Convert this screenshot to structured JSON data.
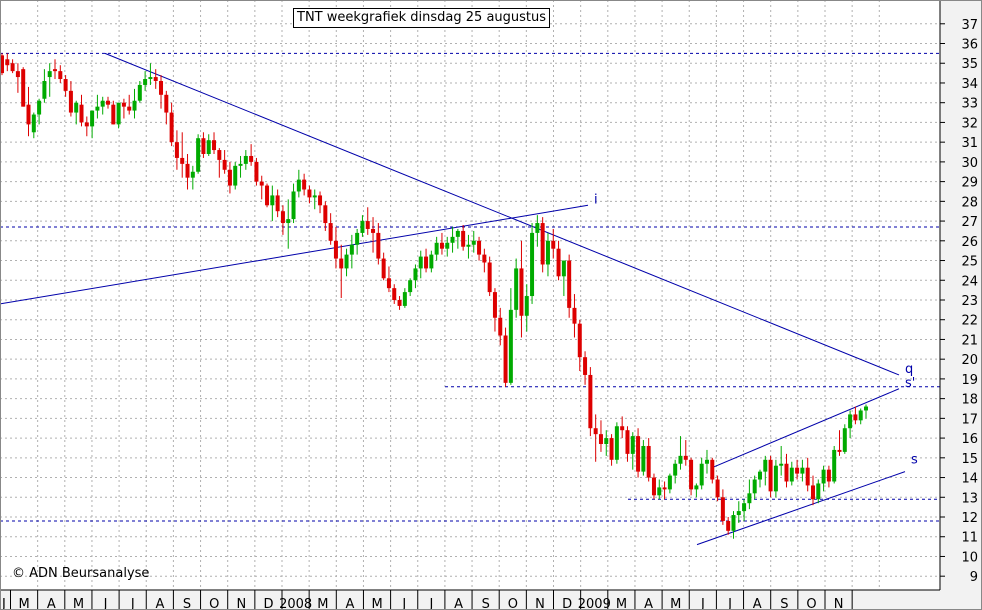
{
  "chart_data": {
    "type": "candlestick",
    "title": "TNT weekgrafiek dinsdag 25 augustus",
    "copyright": "© ADN Beursanalyse",
    "y_axis": {
      "position": "right",
      "ylim": [
        8.3,
        37.8
      ],
      "ticks": [
        9,
        10,
        11,
        12,
        13,
        14,
        15,
        16,
        17,
        18,
        19,
        20,
        21,
        22,
        23,
        24,
        25,
        26,
        27,
        28,
        29,
        30,
        31,
        32,
        33,
        34,
        35,
        36,
        37
      ]
    },
    "x_axis": {
      "tick_labels": [
        "J",
        "M",
        "A",
        "M",
        "J",
        "J",
        "A",
        "S",
        "O",
        "N",
        "D",
        "2008",
        "M",
        "A",
        "M",
        "J",
        "J",
        "A",
        "S",
        "O",
        "N",
        "D",
        "2009",
        "M",
        "A",
        "M",
        "J",
        "J",
        "A",
        "S",
        "O",
        "N"
      ]
    },
    "grid": true,
    "colors": {
      "up": "#00aa00",
      "down": "#dd0000",
      "lines": "#0000aa",
      "grid": "#b0b0b0",
      "axis_bg": "#f2f2f2"
    },
    "horizontal_levels": [
      35.5,
      26.7,
      18.6,
      12.9,
      11.8
    ],
    "trendlines": [
      {
        "from": [
          "2007-06",
          35.5
        ],
        "to": [
          "2009-10",
          19.2
        ],
        "label": "q"
      },
      {
        "from": [
          "2006-12",
          22.8
        ],
        "to": [
          "2008-07",
          27.8
        ],
        "label": "i"
      },
      {
        "from": [
          "2009-02",
          10.6
        ],
        "to": [
          "2009-10",
          14.3
        ],
        "label": "s"
      },
      {
        "from": [
          "2009-02",
          14.5
        ],
        "to": [
          "2009-10",
          18.5
        ],
        "label": "s'"
      }
    ],
    "ohlc_series": "TNT weekly",
    "ohlc": [
      [
        35.4,
        35.5,
        34.4,
        34.5
      ],
      [
        35.2,
        35.5,
        34.6,
        34.9
      ],
      [
        35.0,
        35.2,
        34.5,
        34.6
      ],
      [
        34.6,
        35.0,
        33.5,
        34.3
      ],
      [
        34.7,
        34.8,
        32.8,
        32.8
      ],
      [
        32.9,
        33.8,
        31.3,
        31.9
      ],
      [
        31.5,
        32.5,
        31.2,
        32.4
      ],
      [
        32.4,
        33.2,
        31.9,
        33.1
      ],
      [
        33.2,
        34.7,
        33.0,
        34.1
      ],
      [
        34.3,
        35.0,
        33.3,
        34.6
      ],
      [
        34.7,
        35.2,
        34.2,
        34.6
      ],
      [
        34.6,
        34.9,
        34.0,
        34.2
      ],
      [
        34.2,
        34.4,
        33.3,
        33.6
      ],
      [
        33.6,
        34.1,
        32.3,
        32.5
      ],
      [
        32.5,
        33.1,
        31.9,
        33.0
      ],
      [
        32.9,
        33.4,
        31.8,
        32.0
      ],
      [
        32.0,
        32.3,
        31.3,
        31.8
      ],
      [
        31.8,
        32.6,
        31.2,
        32.6
      ],
      [
        32.6,
        33.4,
        32.2,
        32.8
      ],
      [
        32.8,
        33.3,
        32.4,
        33.1
      ],
      [
        33.1,
        33.3,
        32.7,
        32.9
      ],
      [
        32.9,
        33.1,
        31.9,
        31.9
      ],
      [
        31.9,
        33.0,
        31.7,
        33.0
      ],
      [
        33.0,
        33.2,
        32.2,
        32.8
      ],
      [
        32.8,
        33.4,
        32.4,
        32.6
      ],
      [
        32.6,
        33.7,
        32.2,
        33.1
      ],
      [
        33.1,
        34.1,
        33.0,
        33.9
      ],
      [
        33.9,
        34.6,
        33.6,
        34.2
      ],
      [
        34.2,
        35.0,
        33.9,
        34.3
      ],
      [
        34.3,
        34.7,
        33.7,
        34.1
      ],
      [
        34.1,
        34.4,
        32.7,
        33.4
      ],
      [
        33.4,
        33.6,
        31.9,
        32.5
      ],
      [
        32.5,
        33.0,
        30.8,
        31.0
      ],
      [
        31.0,
        31.6,
        29.6,
        30.2
      ],
      [
        30.2,
        31.5,
        29.2,
        29.9
      ],
      [
        29.9,
        30.4,
        28.6,
        29.2
      ],
      [
        29.2,
        29.8,
        28.6,
        29.5
      ],
      [
        29.5,
        31.4,
        29.4,
        31.2
      ],
      [
        31.2,
        31.5,
        30.2,
        30.4
      ],
      [
        30.4,
        31.4,
        30.3,
        31.1
      ],
      [
        31.1,
        31.5,
        30.4,
        30.6
      ],
      [
        30.6,
        30.7,
        29.2,
        30.1
      ],
      [
        30.1,
        30.6,
        29.4,
        29.6
      ],
      [
        29.6,
        30.0,
        28.4,
        28.8
      ],
      [
        28.8,
        30.0,
        28.6,
        29.8
      ],
      [
        29.8,
        30.3,
        29.2,
        29.9
      ],
      [
        29.9,
        30.6,
        29.6,
        30.3
      ],
      [
        30.3,
        30.9,
        29.8,
        30.0
      ],
      [
        30.0,
        30.2,
        28.8,
        29.0
      ],
      [
        29.0,
        29.3,
        28.1,
        28.8
      ],
      [
        28.8,
        28.9,
        27.7,
        27.8
      ],
      [
        27.8,
        28.8,
        27.0,
        28.3
      ],
      [
        28.3,
        28.6,
        27.2,
        27.5
      ],
      [
        27.5,
        27.8,
        26.3,
        26.9
      ],
      [
        26.9,
        28.1,
        25.6,
        27.1
      ],
      [
        27.1,
        28.9,
        26.9,
        28.5
      ],
      [
        28.5,
        29.6,
        28.2,
        29.1
      ],
      [
        29.1,
        29.4,
        28.3,
        28.6
      ],
      [
        28.6,
        28.8,
        27.9,
        28.2
      ],
      [
        28.2,
        28.6,
        27.6,
        28.3
      ],
      [
        28.3,
        28.5,
        27.4,
        27.8
      ],
      [
        27.8,
        28.0,
        26.5,
        26.9
      ],
      [
        26.9,
        27.4,
        25.8,
        26.0
      ],
      [
        26.0,
        26.7,
        24.6,
        25.1
      ],
      [
        25.1,
        25.8,
        23.1,
        24.6
      ],
      [
        24.6,
        25.6,
        24.2,
        25.3
      ],
      [
        25.3,
        26.3,
        24.6,
        25.8
      ],
      [
        25.8,
        26.6,
        25.3,
        26.4
      ],
      [
        26.4,
        27.3,
        26.2,
        27.0
      ],
      [
        27.0,
        27.7,
        26.3,
        26.6
      ],
      [
        26.6,
        27.2,
        25.4,
        26.4
      ],
      [
        26.4,
        26.9,
        24.8,
        25.1
      ],
      [
        25.1,
        25.4,
        24.0,
        24.1
      ],
      [
        24.1,
        24.7,
        23.4,
        23.6
      ],
      [
        23.6,
        23.8,
        22.8,
        23.0
      ],
      [
        23.0,
        23.2,
        22.5,
        22.7
      ],
      [
        22.7,
        23.6,
        22.6,
        23.4
      ],
      [
        23.4,
        24.1,
        23.2,
        24.0
      ],
      [
        24.0,
        24.8,
        23.6,
        24.6
      ],
      [
        24.6,
        25.5,
        24.1,
        25.2
      ],
      [
        25.2,
        25.6,
        24.4,
        24.6
      ],
      [
        24.6,
        25.5,
        24.4,
        25.3
      ],
      [
        25.3,
        26.2,
        25.0,
        25.9
      ],
      [
        25.9,
        26.4,
        25.3,
        25.6
      ],
      [
        25.6,
        26.2,
        25.2,
        25.9
      ],
      [
        25.9,
        26.7,
        25.4,
        26.2
      ],
      [
        26.2,
        26.6,
        25.6,
        26.5
      ],
      [
        26.5,
        26.8,
        25.5,
        25.7
      ],
      [
        25.7,
        26.3,
        25.1,
        25.8
      ],
      [
        25.8,
        26.5,
        25.4,
        26.0
      ],
      [
        26.0,
        26.2,
        25.0,
        25.3
      ],
      [
        25.3,
        25.6,
        24.4,
        24.9
      ],
      [
        24.9,
        25.2,
        23.2,
        23.4
      ],
      [
        23.4,
        23.6,
        21.4,
        22.1
      ],
      [
        22.1,
        22.6,
        20.7,
        21.2
      ],
      [
        21.2,
        21.6,
        18.6,
        18.8
      ],
      [
        18.8,
        23.6,
        18.7,
        22.5
      ],
      [
        22.5,
        25.1,
        22.1,
        24.6
      ],
      [
        24.6,
        26.0,
        21.1,
        22.2
      ],
      [
        22.2,
        23.8,
        21.4,
        23.2
      ],
      [
        23.2,
        26.9,
        22.8,
        26.4
      ],
      [
        26.4,
        27.3,
        25.7,
        26.9
      ],
      [
        26.9,
        27.2,
        24.4,
        24.8
      ],
      [
        24.8,
        26.4,
        24.2,
        26.0
      ],
      [
        26.0,
        26.6,
        25.1,
        25.6
      ],
      [
        25.6,
        26.0,
        24.0,
        24.2
      ],
      [
        24.2,
        25.0,
        23.2,
        25.0
      ],
      [
        25.0,
        25.3,
        22.1,
        22.6
      ],
      [
        22.6,
        23.3,
        21.1,
        21.8
      ],
      [
        21.8,
        22.0,
        19.4,
        20.1
      ],
      [
        20.1,
        20.4,
        18.7,
        19.2
      ],
      [
        19.2,
        19.6,
        16.1,
        16.5
      ],
      [
        16.5,
        17.2,
        14.8,
        16.2
      ],
      [
        16.2,
        16.9,
        15.3,
        15.7
      ],
      [
        15.7,
        16.4,
        15.1,
        16.0
      ],
      [
        16.0,
        16.2,
        14.6,
        14.9
      ],
      [
        14.9,
        16.8,
        14.7,
        16.6
      ],
      [
        16.6,
        17.1,
        16.0,
        16.4
      ],
      [
        16.4,
        16.6,
        14.8,
        15.2
      ],
      [
        15.2,
        16.3,
        14.4,
        16.1
      ],
      [
        16.1,
        16.5,
        14.0,
        14.3
      ],
      [
        14.3,
        15.9,
        14.1,
        15.6
      ],
      [
        15.6,
        16.0,
        13.8,
        14.0
      ],
      [
        14.0,
        14.2,
        12.9,
        13.1
      ],
      [
        13.1,
        13.9,
        12.9,
        13.5
      ],
      [
        13.5,
        13.8,
        12.9,
        13.4
      ],
      [
        13.4,
        14.2,
        13.2,
        14.1
      ],
      [
        14.1,
        14.9,
        13.7,
        14.7
      ],
      [
        14.7,
        16.1,
        14.4,
        15.1
      ],
      [
        15.1,
        15.9,
        14.6,
        14.9
      ],
      [
        14.9,
        15.0,
        13.1,
        13.4
      ],
      [
        13.4,
        13.7,
        13.0,
        13.6
      ],
      [
        13.6,
        15.0,
        13.4,
        14.7
      ],
      [
        14.7,
        15.4,
        14.2,
        14.9
      ],
      [
        14.9,
        15.0,
        13.7,
        13.9
      ],
      [
        13.9,
        14.1,
        12.8,
        13.0
      ],
      [
        13.0,
        13.4,
        11.6,
        11.8
      ],
      [
        11.8,
        12.0,
        11.1,
        11.3
      ],
      [
        11.3,
        12.3,
        10.9,
        12.1
      ],
      [
        12.1,
        12.8,
        11.7,
        12.3
      ],
      [
        12.3,
        12.9,
        11.8,
        12.7
      ],
      [
        12.7,
        13.9,
        12.4,
        13.2
      ],
      [
        13.2,
        14.1,
        12.9,
        13.9
      ],
      [
        13.9,
        14.4,
        13.5,
        14.3
      ],
      [
        14.3,
        15.1,
        13.6,
        14.9
      ],
      [
        14.9,
        15.1,
        13.0,
        13.3
      ],
      [
        13.3,
        14.9,
        13.0,
        14.6
      ],
      [
        14.6,
        15.6,
        14.1,
        14.7
      ],
      [
        14.7,
        15.2,
        13.5,
        13.8
      ],
      [
        13.8,
        14.8,
        13.6,
        14.5
      ],
      [
        14.5,
        14.9,
        13.9,
        14.2
      ],
      [
        14.2,
        14.9,
        13.8,
        14.5
      ],
      [
        14.5,
        15.0,
        13.3,
        13.6
      ],
      [
        13.6,
        14.1,
        12.6,
        12.9
      ],
      [
        12.9,
        13.9,
        12.7,
        13.7
      ],
      [
        13.7,
        14.6,
        13.3,
        14.4
      ],
      [
        14.4,
        14.6,
        13.5,
        13.8
      ],
      [
        13.8,
        15.6,
        13.7,
        15.4
      ],
      [
        15.4,
        16.4,
        15.1,
        15.3
      ],
      [
        15.3,
        16.7,
        15.2,
        16.5
      ],
      [
        16.5,
        17.4,
        16.0,
        17.2
      ],
      [
        17.2,
        17.6,
        16.7,
        16.9
      ],
      [
        16.9,
        17.5,
        16.7,
        17.4
      ],
      [
        17.4,
        17.7,
        17.0,
        17.6
      ]
    ]
  }
}
